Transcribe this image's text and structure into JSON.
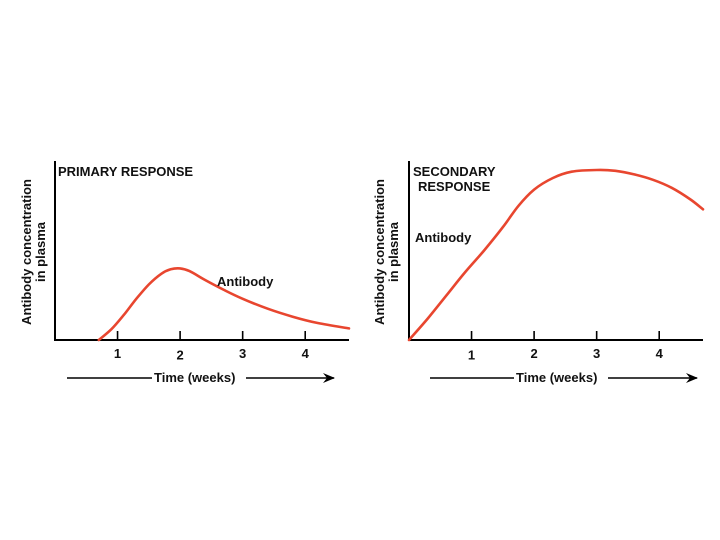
{
  "colors": {
    "curve": "#e8462f",
    "axis": "#000000",
    "text": "#111111"
  },
  "chart_data": [
    {
      "type": "line",
      "title": "PRIMARY RESPONSE",
      "ylabel_lines": [
        "Antibody concentration",
        "in plasma"
      ],
      "xlabel": "Time (weeks)",
      "xlim": [
        0,
        4.7
      ],
      "ylim": [
        0,
        10
      ],
      "xticks": [
        1,
        2,
        3,
        4
      ],
      "xtick_labels": [
        "1",
        "2",
        "3",
        "4"
      ],
      "series": [
        {
          "name": "Antibody",
          "x": [
            0.7,
            0.9,
            1.1,
            1.3,
            1.5,
            1.7,
            1.85,
            2.0,
            2.15,
            2.4,
            2.7,
            3.0,
            3.4,
            3.8,
            4.2,
            4.7
          ],
          "y": [
            0.0,
            0.6,
            1.4,
            2.3,
            3.1,
            3.7,
            3.95,
            4.0,
            3.85,
            3.35,
            2.8,
            2.3,
            1.75,
            1.3,
            0.95,
            0.65
          ]
        }
      ]
    },
    {
      "type": "line",
      "title": "SECONDARY RESPONSE",
      "title_lines": [
        "SECONDARY",
        "RESPONSE"
      ],
      "ylabel_lines": [
        "Antibody concentration",
        "in plasma"
      ],
      "xlabel": "Time (weeks)",
      "xlim": [
        0,
        4.7
      ],
      "ylim": [
        0,
        10
      ],
      "xticks": [
        1,
        2,
        3,
        4
      ],
      "xtick_labels": [
        "1",
        "2",
        "3",
        "4"
      ],
      "series": [
        {
          "name": "Antibody",
          "x": [
            0.0,
            0.3,
            0.6,
            0.9,
            1.2,
            1.5,
            1.75,
            2.0,
            2.3,
            2.6,
            3.0,
            3.3,
            3.6,
            3.9,
            4.2,
            4.5,
            4.7
          ],
          "y": [
            0.0,
            1.2,
            2.5,
            3.8,
            5.0,
            6.3,
            7.5,
            8.4,
            9.05,
            9.4,
            9.5,
            9.45,
            9.25,
            8.95,
            8.5,
            7.85,
            7.3
          ]
        }
      ]
    }
  ]
}
